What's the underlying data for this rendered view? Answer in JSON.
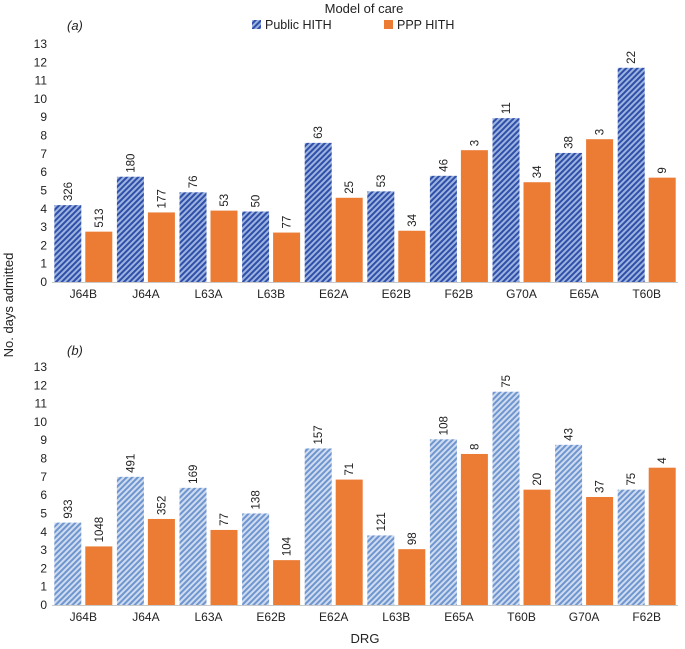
{
  "colors": {
    "public": "#5b7fc4",
    "ppp": "#ec7b34"
  },
  "legend_title": "Model of care",
  "chart_data": [
    {
      "type": "bar",
      "panel_label": "(a)",
      "ylabel": "No. days admitted",
      "xlabel": "",
      "ylim": [
        0,
        13
      ],
      "yticks": [
        0,
        1,
        2,
        3,
        4,
        5,
        6,
        7,
        8,
        9,
        10,
        11,
        12,
        13
      ],
      "categories": [
        "J64B",
        "J64A",
        "L63A",
        "L63B",
        "E62A",
        "E62B",
        "F62B",
        "G70A",
        "E65A",
        "T60B"
      ],
      "series": [
        {
          "name": "Public HITH",
          "pattern": "hatched",
          "values": [
            4.2,
            5.75,
            4.9,
            3.85,
            7.6,
            4.95,
            5.8,
            8.95,
            7.05,
            11.7
          ],
          "labels": [
            "326",
            "180",
            "76",
            "50",
            "63",
            "53",
            "46",
            "11",
            "38",
            "22"
          ]
        },
        {
          "name": "PPP HITH",
          "pattern": "solid",
          "values": [
            2.75,
            3.8,
            3.9,
            2.7,
            4.6,
            2.8,
            7.2,
            5.45,
            7.8,
            5.7
          ],
          "labels": [
            "513",
            "177",
            "53",
            "77",
            "25",
            "34",
            "3",
            "34",
            "3",
            "9"
          ]
        }
      ]
    },
    {
      "type": "bar",
      "panel_label": "(b)",
      "ylabel": "No. days admitted",
      "xlabel": "DRG",
      "ylim": [
        0,
        13
      ],
      "yticks": [
        0,
        1,
        2,
        3,
        4,
        5,
        6,
        7,
        8,
        9,
        10,
        11,
        12,
        13
      ],
      "categories": [
        "J64B",
        "J64A",
        "L63A",
        "E62B",
        "E62A",
        "L63B",
        "E65A",
        "T60B",
        "G70A",
        "F62B"
      ],
      "series": [
        {
          "name": "Public HITH",
          "pattern": "hatched-light",
          "values": [
            4.5,
            7.0,
            6.4,
            5.0,
            8.55,
            3.8,
            9.05,
            11.65,
            8.75,
            6.3
          ],
          "labels": [
            "933",
            "491",
            "169",
            "138",
            "157",
            "121",
            "108",
            "75",
            "43",
            "75"
          ]
        },
        {
          "name": "PPP HITH",
          "pattern": "solid",
          "values": [
            3.2,
            4.7,
            4.1,
            2.45,
            6.85,
            3.05,
            8.25,
            6.3,
            5.9,
            7.5
          ],
          "labels": [
            "1048",
            "352",
            "77",
            "104",
            "71",
            "98",
            "8",
            "20",
            "37",
            "4"
          ]
        }
      ]
    }
  ]
}
